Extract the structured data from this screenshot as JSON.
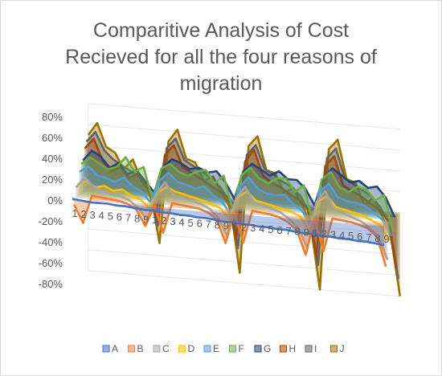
{
  "chart_data": {
    "type": "area",
    "title_lines": [
      "Comparitive Analysis of Cost",
      "Recieved for all the four reasons of",
      "migration"
    ],
    "xlabel": "",
    "ylabel": "",
    "ylim": [
      -0.8,
      0.8
    ],
    "y_ticks": [
      "80%",
      "60%",
      "40%",
      "20%",
      "0%",
      "-20%",
      "-40%",
      "-60%",
      "-80%"
    ],
    "y_tick_values": [
      0.8,
      0.6,
      0.4,
      0.2,
      0,
      -0.2,
      -0.4,
      -0.6,
      -0.8
    ],
    "groups": 4,
    "categories": [
      "1",
      "2",
      "3",
      "4",
      "5",
      "6",
      "7",
      "8",
      "9",
      "1",
      "2",
      "3",
      "4",
      "5",
      "6",
      "7",
      "8",
      "9",
      "1",
      "2",
      "3",
      "4",
      "5",
      "6",
      "7",
      "8",
      "9",
      "1",
      "2",
      "3",
      "4",
      "5",
      "6",
      "7",
      "8",
      "9"
    ],
    "grid": true,
    "legend_position": "bottom",
    "series": [
      {
        "name": "A",
        "color": "#4472c4",
        "values": [
          0.02,
          0.01,
          0.0,
          0.0,
          0.0,
          -0.01,
          -0.01,
          -0.02,
          -0.03,
          -0.03,
          -0.04,
          -0.04,
          -0.05,
          -0.05,
          -0.06,
          -0.06,
          -0.07,
          -0.08,
          -0.08,
          -0.09,
          -0.09,
          -0.1,
          -0.1,
          -0.11,
          -0.11,
          -0.12,
          -0.13,
          -0.13,
          -0.14,
          -0.14,
          -0.15,
          -0.15,
          -0.16,
          -0.16,
          -0.17,
          -0.18
        ]
      },
      {
        "name": "B",
        "color": "#ed7d31",
        "values": [
          -0.05,
          -0.22,
          0.05,
          0.04,
          0.03,
          0.02,
          0.0,
          -0.05,
          -0.2,
          0.0,
          -0.25,
          0.04,
          0.03,
          0.02,
          0.01,
          -0.02,
          -0.08,
          -0.3,
          0.0,
          -0.28,
          0.03,
          0.02,
          0.01,
          -0.01,
          -0.05,
          -0.12,
          -0.35,
          0.0,
          -0.3,
          0.02,
          0.01,
          0.0,
          -0.02,
          -0.05,
          -0.12,
          -0.4
        ]
      },
      {
        "name": "C",
        "color": "#a5a5a5",
        "values": [
          0.1,
          0.2,
          0.12,
          0.08,
          0.06,
          0.05,
          0.02,
          -0.05,
          -0.15,
          0.1,
          0.22,
          0.1,
          0.08,
          0.06,
          0.04,
          0.0,
          -0.08,
          -0.25,
          0.12,
          0.24,
          0.1,
          0.07,
          0.05,
          0.02,
          -0.04,
          -0.12,
          -0.3,
          0.15,
          0.26,
          0.1,
          0.06,
          0.03,
          0.0,
          -0.06,
          -0.15,
          -0.35
        ]
      },
      {
        "name": "D",
        "color": "#ffc000",
        "values": [
          0.12,
          0.15,
          0.1,
          0.12,
          0.08,
          0.1,
          0.05,
          0.02,
          -0.05,
          0.1,
          0.16,
          0.12,
          0.1,
          0.08,
          0.06,
          0.03,
          0.0,
          -0.1,
          0.12,
          0.18,
          0.1,
          0.08,
          0.06,
          0.04,
          0.02,
          -0.02,
          -0.15,
          0.14,
          0.2,
          0.1,
          0.08,
          0.06,
          0.04,
          0.0,
          -0.04,
          -0.18
        ]
      },
      {
        "name": "E",
        "color": "#5b9bd5",
        "values": [
          0.22,
          0.28,
          0.2,
          0.18,
          0.15,
          0.2,
          0.12,
          0.08,
          -0.02,
          0.2,
          0.28,
          0.2,
          0.18,
          0.15,
          0.18,
          0.1,
          0.05,
          -0.08,
          0.2,
          0.3,
          0.2,
          0.16,
          0.15,
          0.16,
          0.08,
          0.02,
          -0.12,
          0.22,
          0.3,
          0.18,
          0.15,
          0.14,
          0.12,
          0.06,
          0.0,
          -0.15
        ]
      },
      {
        "name": "F",
        "color": "#70ad47",
        "values": [
          0.28,
          0.35,
          0.3,
          0.25,
          0.28,
          0.38,
          0.25,
          0.3,
          0.0,
          0.3,
          0.35,
          0.28,
          0.25,
          0.3,
          0.32,
          0.2,
          0.28,
          -0.05,
          0.3,
          0.38,
          0.28,
          0.24,
          0.3,
          0.3,
          0.18,
          0.25,
          -0.1,
          0.32,
          0.4,
          0.26,
          0.22,
          0.28,
          0.26,
          0.16,
          0.22,
          -0.12
        ]
      },
      {
        "name": "G",
        "color": "#264478",
        "values": [
          0.3,
          0.4,
          0.35,
          0.25,
          0.3,
          0.2,
          0.25,
          0.15,
          0.05,
          0.3,
          0.38,
          0.35,
          0.3,
          0.32,
          0.28,
          0.3,
          0.2,
          0.05,
          0.32,
          0.4,
          0.35,
          0.3,
          0.35,
          0.28,
          0.28,
          0.2,
          0.05,
          0.32,
          0.42,
          0.36,
          0.3,
          0.32,
          0.26,
          0.28,
          0.18,
          0.0
        ]
      },
      {
        "name": "H",
        "color": "#9e480e",
        "values": [
          0.4,
          0.5,
          0.3,
          0.2,
          0.25,
          0.15,
          0.2,
          0.1,
          -0.2,
          0.4,
          0.5,
          0.3,
          0.25,
          0.2,
          0.15,
          0.1,
          0.05,
          -0.35,
          0.4,
          0.52,
          0.28,
          0.22,
          0.18,
          0.12,
          0.08,
          0.0,
          -0.45,
          0.42,
          0.52,
          0.25,
          0.2,
          0.16,
          0.1,
          0.05,
          -0.05,
          -0.5
        ]
      },
      {
        "name": "I",
        "color": "#636363",
        "values": [
          0.45,
          0.55,
          0.38,
          0.3,
          0.25,
          0.2,
          0.15,
          0.05,
          -0.3,
          0.45,
          0.55,
          0.35,
          0.3,
          0.25,
          0.2,
          0.12,
          0.0,
          -0.45,
          0.45,
          0.55,
          0.33,
          0.28,
          0.22,
          0.18,
          0.1,
          -0.05,
          -0.55,
          0.48,
          0.58,
          0.3,
          0.25,
          0.2,
          0.15,
          0.05,
          -0.1,
          -0.62
        ]
      },
      {
        "name": "J",
        "color": "#997300",
        "values": [
          0.5,
          0.62,
          0.4,
          0.35,
          0.2,
          0.3,
          0.1,
          0.0,
          -0.48,
          0.5,
          0.62,
          0.35,
          0.32,
          0.15,
          0.2,
          0.05,
          -0.1,
          -0.7,
          0.52,
          0.62,
          0.3,
          0.28,
          0.1,
          0.15,
          0.0,
          -0.2,
          -0.8,
          0.55,
          0.65,
          0.28,
          0.25,
          0.05,
          0.12,
          -0.05,
          -0.25,
          -0.85
        ]
      }
    ]
  }
}
